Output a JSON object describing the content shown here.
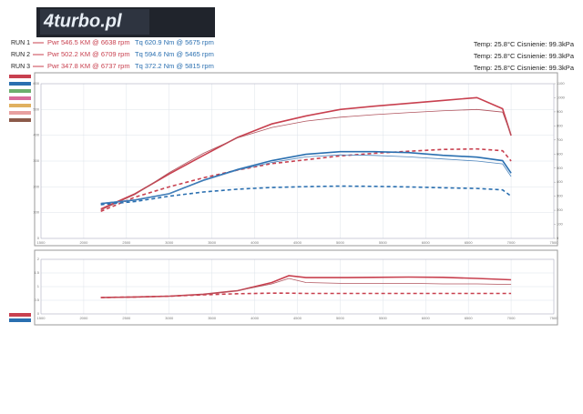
{
  "header": {
    "logo": "4turbo.pl"
  },
  "runs": [
    {
      "label": "RUN 1",
      "power": "Pwr 546.5 KM @ 6638 rpm",
      "torque": "Tq 620.9 Nm @ 5675 rpm"
    },
    {
      "label": "RUN 2",
      "power": "Pwr 502.2 KM @ 6709 rpm",
      "torque": "Tq 594.6 Nm @ 5465 rpm"
    },
    {
      "label": "RUN 3",
      "power": "Pwr 347.8 KM @ 6737 rpm",
      "torque": "Tq 372.2 Nm @ 5815 rpm"
    }
  ],
  "conditions": [
    "Temp: 25.8°C Cisnienie: 99.3kPa",
    "Temp: 25.8°C Cisnienie: 99.3kPa",
    "Temp: 25.8°C Cisnienie: 99.3kPa"
  ],
  "chart_data": [
    {
      "type": "line",
      "x": [
        2200,
        2600,
        3000,
        3400,
        3800,
        4200,
        4600,
        5000,
        5400,
        5800,
        6200,
        6600,
        6900,
        7000
      ],
      "xlim": [
        1500,
        7500
      ],
      "xticks": [
        1500,
        2000,
        2500,
        3000,
        3500,
        4000,
        4500,
        5000,
        5500,
        6000,
        6500,
        7000,
        7500
      ],
      "ylim": [
        0,
        600
      ],
      "yticks": [
        0,
        100,
        200,
        300,
        400,
        500,
        600
      ],
      "y2lim": [
        0,
        1100
      ],
      "y2ticks": [
        0,
        100,
        200,
        300,
        400,
        500,
        600,
        700,
        800,
        900,
        1000,
        1100
      ],
      "grid": true,
      "series": [
        {
          "color": "#c8404f",
          "style": "solid",
          "values": [
            114,
            173,
            250,
            322,
            392,
            444,
            475,
            500,
            513,
            524,
            535,
            546,
            503,
            399
          ]
        },
        {
          "color": "#b0545e",
          "style": "thin",
          "values": [
            110,
            170,
            255,
            330,
            390,
            430,
            455,
            470,
            480,
            488,
            495,
            500,
            490,
            400
          ]
        },
        {
          "color": "#c8404f",
          "style": "dashed",
          "values": [
            105,
            160,
            200,
            235,
            265,
            290,
            305,
            320,
            330,
            338,
            345,
            347,
            340,
            300
          ]
        },
        {
          "color": "#2a6fb0",
          "style": "solid",
          "axis": "y2",
          "values": [
            248,
            273,
            318,
            413,
            490,
            553,
            598,
            617,
            617,
            610,
            591,
            578,
            553,
            464
          ]
        },
        {
          "color": "#4f86bd",
          "style": "thin",
          "axis": "y2",
          "values": [
            250,
            275,
            318,
            410,
            485,
            540,
            580,
            594,
            590,
            580,
            565,
            550,
            530,
            440
          ]
        },
        {
          "color": "#2a6fb0",
          "style": "dashed",
          "axis": "y2",
          "values": [
            240,
            262,
            300,
            330,
            350,
            362,
            368,
            372,
            370,
            366,
            360,
            355,
            345,
            300
          ]
        }
      ]
    },
    {
      "type": "line",
      "x": [
        2200,
        2600,
        3000,
        3400,
        3800,
        4200,
        4400,
        4600,
        5000,
        5400,
        5800,
        6200,
        6600,
        7000
      ],
      "xlim": [
        1500,
        7500
      ],
      "xticks": [
        1500,
        2000,
        2500,
        3000,
        3500,
        4000,
        4500,
        5000,
        5500,
        6000,
        6500,
        7000,
        7500
      ],
      "ylim": [
        0,
        2
      ],
      "yticks": [
        0,
        0.5,
        1,
        1.5,
        2
      ],
      "grid": true,
      "series": [
        {
          "color": "#c8404f",
          "style": "solid",
          "values": [
            0.6,
            0.62,
            0.65,
            0.72,
            0.85,
            1.15,
            1.4,
            1.33,
            1.33,
            1.34,
            1.35,
            1.34,
            1.3,
            1.25
          ]
        },
        {
          "color": "#b0545e",
          "style": "thin",
          "values": [
            0.6,
            0.62,
            0.65,
            0.72,
            0.85,
            1.1,
            1.3,
            1.15,
            1.12,
            1.12,
            1.12,
            1.1,
            1.1,
            1.08
          ]
        },
        {
          "color": "#c8404f",
          "style": "dashed",
          "values": [
            0.6,
            0.62,
            0.65,
            0.7,
            0.74,
            0.76,
            0.76,
            0.75,
            0.75,
            0.75,
            0.75,
            0.75,
            0.75,
            0.75
          ]
        }
      ]
    }
  ]
}
